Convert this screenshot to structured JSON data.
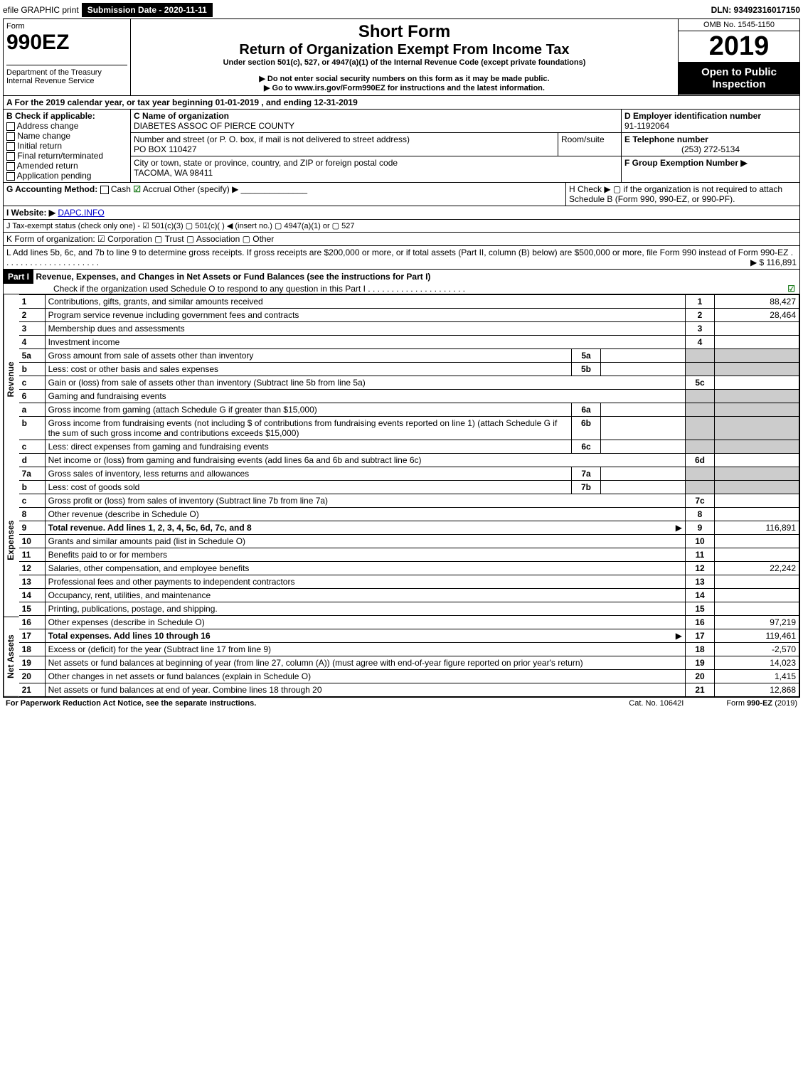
{
  "topbar": {
    "efile": "efile GRAPHIC print",
    "subdate_label": "Submission Date - 2020-11-11",
    "dln": "DLN: 93492316017150"
  },
  "header": {
    "form_word": "Form",
    "form_number": "990EZ",
    "dept": "Department of the Treasury",
    "irs": "Internal Revenue Service",
    "title1": "Short Form",
    "title2": "Return of Organization Exempt From Income Tax",
    "subtitle": "Under section 501(c), 527, or 4947(a)(1) of the Internal Revenue Code (except private foundations)",
    "warn": "▶ Do not enter social security numbers on this form as it may be made public.",
    "goto": "▶ Go to www.irs.gov/Form990EZ for instructions and the latest information.",
    "omb": "OMB No. 1545-1150",
    "year": "2019",
    "open": "Open to Public Inspection"
  },
  "a_line": "A For the 2019 calendar year, or tax year beginning 01-01-2019 , and ending 12-31-2019",
  "b": {
    "label": "B  Check if applicable:",
    "opts": [
      "Address change",
      "Name change",
      "Initial return",
      "Final return/terminated",
      "Amended return",
      "Application pending"
    ]
  },
  "c": {
    "label": "C Name of organization",
    "name": "DIABETES ASSOC OF PIERCE COUNTY",
    "street_label": "Number and street (or P. O. box, if mail is not delivered to street address)",
    "room_label": "Room/suite",
    "street": "PO BOX 110427",
    "city_label": "City or town, state or province, country, and ZIP or foreign postal code",
    "city": "TACOMA, WA  98411"
  },
  "d": {
    "label": "D Employer identification number",
    "value": "91-1192064"
  },
  "e": {
    "label": "E Telephone number",
    "value": "(253) 272-5134"
  },
  "f": {
    "label": "F Group Exemption Number  ▶"
  },
  "g": {
    "label": "G Accounting Method:",
    "cash": "Cash",
    "accrual": "Accrual",
    "other": "Other (specify) ▶"
  },
  "h": {
    "text": "H  Check ▶  ▢  if the organization is not required to attach Schedule B (Form 990, 990-EZ, or 990-PF)."
  },
  "i": {
    "label": "I Website: ▶",
    "value": "DAPC.INFO"
  },
  "j": {
    "label": "J Tax-exempt status (check only one) - ☑ 501(c)(3)  ▢ 501(c)(  ) ◀ (insert no.)  ▢ 4947(a)(1) or  ▢ 527"
  },
  "k": {
    "label": "K Form of organization:  ☑ Corporation  ▢ Trust  ▢ Association  ▢ Other"
  },
  "l": {
    "text": "L Add lines 5b, 6c, and 7b to line 9 to determine gross receipts. If gross receipts are $200,000 or more, or if total assets (Part II, column (B) below) are $500,000 or more, file Form 990 instead of Form 990-EZ",
    "amount": "▶ $ 116,891"
  },
  "part1": {
    "title": "Part I",
    "heading": "Revenue, Expenses, and Changes in Net Assets or Fund Balances (see the instructions for Part I)",
    "sub": "Check if the organization used Schedule O to respond to any question in this Part I",
    "sections": {
      "revenue": "Revenue",
      "expenses": "Expenses",
      "netassets": "Net Assets"
    }
  },
  "lines": [
    {
      "n": "1",
      "text": "Contributions, gifts, grants, and similar amounts received",
      "idx": "1",
      "amt": "88,427"
    },
    {
      "n": "2",
      "text": "Program service revenue including government fees and contracts",
      "idx": "2",
      "amt": "28,464"
    },
    {
      "n": "3",
      "text": "Membership dues and assessments",
      "idx": "3",
      "amt": ""
    },
    {
      "n": "4",
      "text": "Investment income",
      "idx": "4",
      "amt": ""
    },
    {
      "n": "5a",
      "text": "Gross amount from sale of assets other than inventory",
      "mid": "5a"
    },
    {
      "n": "b",
      "text": "Less: cost or other basis and sales expenses",
      "mid": "5b"
    },
    {
      "n": "c",
      "text": "Gain or (loss) from sale of assets other than inventory (Subtract line 5b from line 5a)",
      "idx": "5c",
      "amt": ""
    },
    {
      "n": "6",
      "text": "Gaming and fundraising events"
    },
    {
      "n": "a",
      "text": "Gross income from gaming (attach Schedule G if greater than $15,000)",
      "mid": "6a"
    },
    {
      "n": "b",
      "text": "Gross income from fundraising events (not including $                    of contributions from fundraising events reported on line 1) (attach Schedule G if the sum of such gross income and contributions exceeds $15,000)",
      "mid": "6b"
    },
    {
      "n": "c",
      "text": "Less: direct expenses from gaming and fundraising events",
      "mid": "6c"
    },
    {
      "n": "d",
      "text": "Net income or (loss) from gaming and fundraising events (add lines 6a and 6b and subtract line 6c)",
      "idx": "6d",
      "amt": ""
    },
    {
      "n": "7a",
      "text": "Gross sales of inventory, less returns and allowances",
      "mid": "7a"
    },
    {
      "n": "b",
      "text": "Less: cost of goods sold",
      "mid": "7b"
    },
    {
      "n": "c",
      "text": "Gross profit or (loss) from sales of inventory (Subtract line 7b from line 7a)",
      "idx": "7c",
      "amt": ""
    },
    {
      "n": "8",
      "text": "Other revenue (describe in Schedule O)",
      "idx": "8",
      "amt": ""
    },
    {
      "n": "9",
      "text": "Total revenue. Add lines 1, 2, 3, 4, 5c, 6d, 7c, and 8",
      "idx": "9",
      "amt": "116,891",
      "bold": true,
      "arrow": true
    },
    {
      "n": "10",
      "text": "Grants and similar amounts paid (list in Schedule O)",
      "idx": "10",
      "amt": ""
    },
    {
      "n": "11",
      "text": "Benefits paid to or for members",
      "idx": "11",
      "amt": ""
    },
    {
      "n": "12",
      "text": "Salaries, other compensation, and employee benefits",
      "idx": "12",
      "amt": "22,242"
    },
    {
      "n": "13",
      "text": "Professional fees and other payments to independent contractors",
      "idx": "13",
      "amt": ""
    },
    {
      "n": "14",
      "text": "Occupancy, rent, utilities, and maintenance",
      "idx": "14",
      "amt": ""
    },
    {
      "n": "15",
      "text": "Printing, publications, postage, and shipping.",
      "idx": "15",
      "amt": ""
    },
    {
      "n": "16",
      "text": "Other expenses (describe in Schedule O)",
      "idx": "16",
      "amt": "97,219"
    },
    {
      "n": "17",
      "text": "Total expenses. Add lines 10 through 16",
      "idx": "17",
      "amt": "119,461",
      "bold": true,
      "arrow": true
    },
    {
      "n": "18",
      "text": "Excess or (deficit) for the year (Subtract line 17 from line 9)",
      "idx": "18",
      "amt": "-2,570"
    },
    {
      "n": "19",
      "text": "Net assets or fund balances at beginning of year (from line 27, column (A)) (must agree with end-of-year figure reported on prior year's return)",
      "idx": "19",
      "amt": "14,023"
    },
    {
      "n": "20",
      "text": "Other changes in net assets or fund balances (explain in Schedule O)",
      "idx": "20",
      "amt": "1,415"
    },
    {
      "n": "21",
      "text": "Net assets or fund balances at end of year. Combine lines 18 through 20",
      "idx": "21",
      "amt": "12,868"
    }
  ],
  "footer": {
    "left": "For Paperwork Reduction Act Notice, see the separate instructions.",
    "mid": "Cat. No. 10642I",
    "right": "Form 990-EZ (2019)"
  }
}
